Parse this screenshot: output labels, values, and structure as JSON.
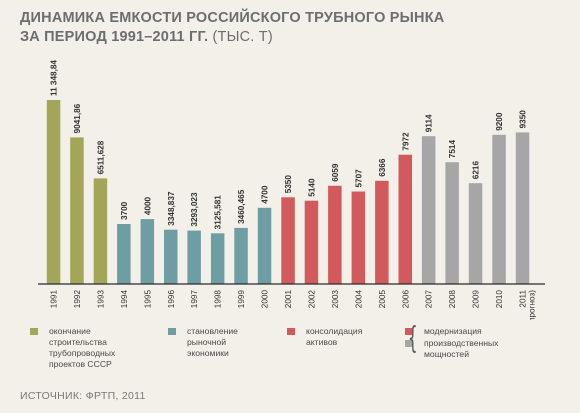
{
  "title": {
    "line1": "ДИНАМИКА ЕМКОСТИ РОССИЙСКОГО ТРУБНОГО РЫНКА",
    "line2": "ЗА ПЕРИОД 1991–2011 ГГ.",
    "unit": "(ТЫС. Т)"
  },
  "colors": {
    "olive": "#a3a559",
    "teal": "#6e9da4",
    "red": "#d35a5c",
    "gray": "#a6a6a6"
  },
  "chart_data": {
    "type": "bar",
    "categories": [
      "1991",
      "1992",
      "1993",
      "1994",
      "1995",
      "1996",
      "1997",
      "1998",
      "1999",
      "2000",
      "2001",
      "2002",
      "2003",
      "2004",
      "2005",
      "2006",
      "2007",
      "2008",
      "2009",
      "2010",
      "2011\n(прогноз)"
    ],
    "values": [
      11348.84,
      9041.86,
      6511.628,
      3700,
      4000,
      3348.837,
      3293.023,
      3125.581,
      3460.465,
      4700,
      5350,
      5140,
      6059,
      5707,
      6366,
      7972,
      9114,
      7514,
      6216,
      9200,
      9350
    ],
    "value_labels": [
      "11 348,84",
      "9041,86",
      "6511,628",
      "3700",
      "4000",
      "3348,837",
      "3293,023",
      "3125,581",
      "3460,465",
      "4700",
      "5350",
      "5140",
      "6059",
      "5707",
      "6366",
      "7972",
      "9114",
      "7514",
      "6216",
      "9200",
      "9350"
    ],
    "groups": [
      "olive",
      "olive",
      "olive",
      "teal",
      "teal",
      "teal",
      "teal",
      "teal",
      "teal",
      "teal",
      "red",
      "red",
      "red",
      "red",
      "red",
      "red",
      "gray",
      "gray",
      "gray",
      "gray",
      "gray"
    ],
    "ylim": [
      0,
      11500
    ],
    "grid": false,
    "legend_position": "bottom"
  },
  "legend": [
    {
      "color": "olive",
      "label": "окончание\nстроительства\nтрубопроводных\nпроектов СССР"
    },
    {
      "color": "teal",
      "label": "становление\nрыночной\nэкономики"
    },
    {
      "color": "red",
      "label": "консолидация\nактивов"
    },
    {
      "color": "red",
      "label": "модернизация"
    },
    {
      "color": "gray",
      "label": "производственных\nмощностей"
    }
  ],
  "source": "ИСТОЧНИК: ФРТП, 2011"
}
